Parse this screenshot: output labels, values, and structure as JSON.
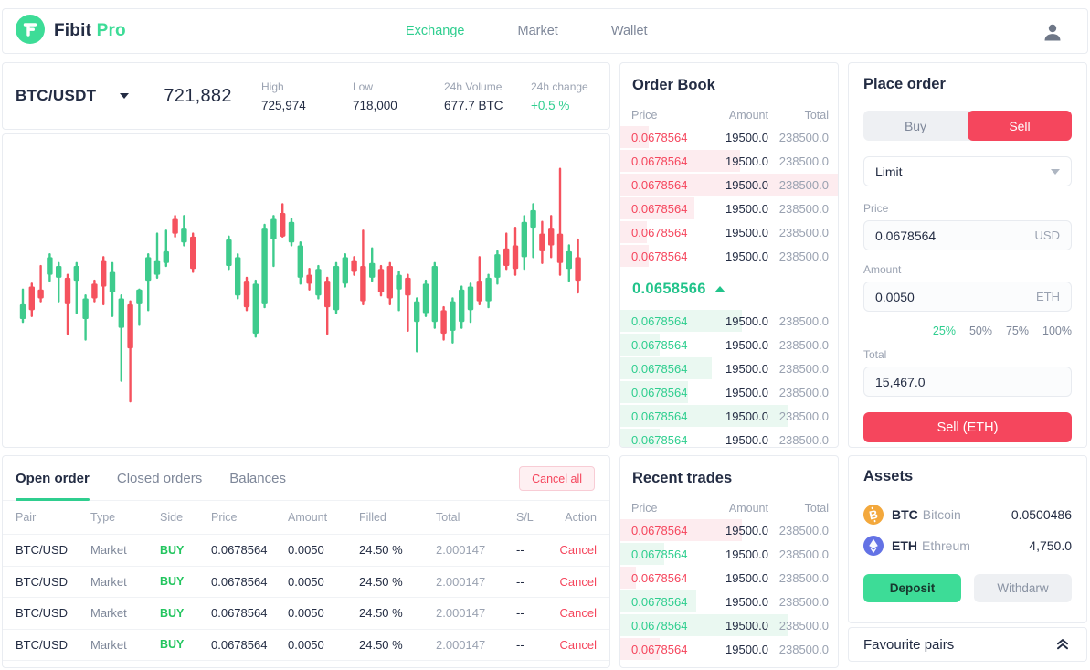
{
  "colors": {
    "accent_green": "#2fce8f",
    "logo_green": "#3ddc97",
    "accent_red": "#f5465d",
    "candle_up": "#3ecb8d",
    "candle_down": "#f5525e",
    "dark_text": "#232c43",
    "muted_text": "#9aa2b1"
  },
  "nav": {
    "brand": "Fibit",
    "brand_suffix": "Pro",
    "items": [
      {
        "label": "Exchange",
        "active": true
      },
      {
        "label": "Market",
        "active": false
      },
      {
        "label": "Wallet",
        "active": false
      }
    ]
  },
  "market_header": {
    "pair": "BTC/USDT",
    "last_price": "721,882",
    "stats": [
      {
        "label": "High",
        "value": "725,974",
        "accent": false
      },
      {
        "label": "Low",
        "value": "718,000",
        "accent": false
      },
      {
        "label": "24h Volume",
        "value": "677.7 BTC",
        "accent": false
      },
      {
        "label": "24h change",
        "value": "+0.5 %",
        "accent": true
      }
    ]
  },
  "chart_data": {
    "type": "candlestick",
    "pair": "BTC/USDT",
    "axes_visible": false,
    "grid": false,
    "up_color": "#3ecb8d",
    "down_color": "#f5525e",
    "note": "values normalized 0-100 of chart height, estimated from pixels; null = gap slot",
    "candles_ohlc": [
      [
        41,
        51,
        40,
        46
      ],
      [
        52,
        53,
        42,
        44
      ],
      [
        51,
        59,
        47,
        48
      ],
      [
        56,
        63,
        54,
        62
      ],
      [
        55,
        60,
        47,
        59
      ],
      [
        55,
        56,
        36,
        46
      ],
      [
        54,
        60,
        43,
        59
      ],
      [
        41,
        49,
        34,
        48
      ],
      [
        53,
        54,
        47,
        48
      ],
      [
        61,
        62,
        46,
        52
      ],
      [
        50,
        60,
        42,
        57
      ],
      [
        38,
        49,
        20,
        48
      ],
      [
        46,
        47,
        13,
        31
      ],
      [
        46,
        51,
        39,
        51
      ],
      [
        54,
        63,
        44,
        62
      ],
      [
        56,
        70,
        55,
        61
      ],
      [
        60,
        71,
        59,
        64
      ],
      [
        75,
        76,
        69,
        70
      ],
      [
        67,
        76,
        66,
        72
      ],
      [
        69,
        70,
        57,
        58
      ],
      null,
      null,
      null,
      [
        59,
        69,
        58,
        68
      ],
      [
        49,
        63,
        48,
        62
      ],
      [
        54,
        55,
        44,
        45
      ],
      [
        36,
        54,
        35,
        53
      ],
      [
        46,
        73,
        45,
        72
      ],
      [
        68,
        76,
        59,
        75
      ],
      [
        77,
        80,
        69,
        69
      ],
      [
        67,
        75,
        66,
        74
      ],
      [
        55,
        67,
        53,
        66
      ],
      [
        56,
        58,
        51,
        53
      ],
      [
        49,
        59,
        48,
        58
      ],
      [
        54,
        55,
        36,
        45
      ],
      [
        44,
        60,
        43,
        59
      ],
      [
        53,
        63,
        52,
        62
      ],
      [
        61,
        62,
        56,
        57
      ],
      [
        59,
        71,
        46,
        47
      ],
      [
        55,
        65,
        54,
        60
      ],
      [
        58,
        59,
        49,
        50
      ],
      [
        59,
        60,
        46,
        48
      ],
      [
        51,
        57,
        44,
        56
      ],
      [
        55,
        56,
        37,
        49
      ],
      [
        40,
        48,
        30,
        47
      ],
      [
        43,
        54,
        42,
        53
      ],
      [
        40,
        60,
        38,
        59
      ],
      [
        44,
        45,
        34,
        36
      ],
      [
        37,
        48,
        33,
        47
      ],
      [
        40,
        52,
        38,
        51
      ],
      [
        44,
        53,
        40,
        52
      ],
      [
        54,
        62,
        46,
        47
      ],
      [
        47,
        56,
        45,
        55
      ],
      [
        55,
        64,
        53,
        63
      ],
      [
        65,
        70,
        58,
        59
      ],
      [
        66,
        72,
        56,
        58
      ],
      [
        62,
        76,
        58,
        74
      ],
      [
        72,
        80,
        62,
        78
      ],
      [
        70,
        74,
        60,
        64
      ],
      [
        72,
        76,
        62,
        66
      ],
      [
        70,
        92,
        56,
        60
      ],
      [
        58,
        66,
        54,
        64
      ],
      [
        62,
        68,
        50,
        54
      ]
    ]
  },
  "order_book": {
    "title": "Order Book",
    "columns": [
      "Price",
      "Amount",
      "Total"
    ],
    "asks": [
      {
        "price": "0.0678564",
        "amount": "19500.0",
        "total": "238500.0",
        "depth": 0.13
      },
      {
        "price": "0.0678564",
        "amount": "19500.0",
        "total": "238500.0",
        "depth": 0.55
      },
      {
        "price": "0.0678564",
        "amount": "19500.0",
        "total": "238500.0",
        "depth": 1.0
      },
      {
        "price": "0.0678564",
        "amount": "19500.0",
        "total": "238500.0",
        "depth": 0.34
      },
      {
        "price": "0.0678564",
        "amount": "19500.0",
        "total": "238500.0",
        "depth": 0.12
      },
      {
        "price": "0.0678564",
        "amount": "19500.0",
        "total": "238500.0",
        "depth": 0.13
      }
    ],
    "mid_price": "0.0658566",
    "mid_direction": "up",
    "bids": [
      {
        "price": "0.0678564",
        "amount": "19500.0",
        "total": "238500.0",
        "depth": 0.56
      },
      {
        "price": "0.0678564",
        "amount": "19500.0",
        "total": "238500.0",
        "depth": 0.18
      },
      {
        "price": "0.0678564",
        "amount": "19500.0",
        "total": "238500.0",
        "depth": 0.42
      },
      {
        "price": "0.0678564",
        "amount": "19500.0",
        "total": "238500.0",
        "depth": 0.31
      },
      {
        "price": "0.0678564",
        "amount": "19500.0",
        "total": "238500.0",
        "depth": 0.77
      },
      {
        "price": "0.0678564",
        "amount": "19500.0",
        "total": "238500.0",
        "depth": 0.18
      }
    ]
  },
  "place_order": {
    "title": "Place order",
    "side_tabs": [
      {
        "label": "Buy",
        "active": false
      },
      {
        "label": "Sell",
        "active": true
      }
    ],
    "order_type": "Limit",
    "price_label": "Price",
    "price_value": "0.0678564",
    "price_unit": "USD",
    "amount_label": "Amount",
    "amount_value": "0.0050",
    "amount_unit": "ETH",
    "percent_options": [
      {
        "label": "25%",
        "active": true
      },
      {
        "label": "50%",
        "active": false
      },
      {
        "label": "75%",
        "active": false
      },
      {
        "label": "100%",
        "active": false
      }
    ],
    "total_label": "Total",
    "total_value": "15,467.0",
    "submit_label": "Sell (ETH)"
  },
  "orders_panel": {
    "tabs": [
      {
        "label": "Open order",
        "active": true
      },
      {
        "label": "Closed orders",
        "active": false
      },
      {
        "label": "Balances",
        "active": false
      }
    ],
    "cancel_all_label": "Cancel all",
    "columns": [
      "Pair",
      "Type",
      "Side",
      "Price",
      "Amount",
      "Filled",
      "Total",
      "S/L",
      "Action"
    ],
    "rows": [
      {
        "pair": "BTC/USD",
        "type": "Market",
        "side": "BUY",
        "price": "0.0678564",
        "amount": "0.0050",
        "filled": "24.50 %",
        "total": "2.000147",
        "sl": "--",
        "action": "Cancel"
      },
      {
        "pair": "BTC/USD",
        "type": "Market",
        "side": "BUY",
        "price": "0.0678564",
        "amount": "0.0050",
        "filled": "24.50 %",
        "total": "2.000147",
        "sl": "--",
        "action": "Cancel"
      },
      {
        "pair": "BTC/USD",
        "type": "Market",
        "side": "BUY",
        "price": "0.0678564",
        "amount": "0.0050",
        "filled": "24.50 %",
        "total": "2.000147",
        "sl": "--",
        "action": "Cancel"
      },
      {
        "pair": "BTC/USD",
        "type": "Market",
        "side": "BUY",
        "price": "0.0678564",
        "amount": "0.0050",
        "filled": "24.50 %",
        "total": "2.000147",
        "sl": "--",
        "action": "Cancel"
      }
    ]
  },
  "recent_trades": {
    "title": "Recent trades",
    "columns": [
      "Price",
      "Amount",
      "Total"
    ],
    "rows": [
      {
        "side": "sell",
        "price": "0.0678564",
        "amount": "19500.0",
        "total": "238500.0",
        "depth": 0.56
      },
      {
        "side": "buy",
        "price": "0.0678564",
        "amount": "19500.0",
        "total": "238500.0",
        "depth": 0.2
      },
      {
        "side": "sell",
        "price": "0.0678564",
        "amount": "19500.0",
        "total": "238500.0",
        "depth": 0.07
      },
      {
        "side": "buy",
        "price": "0.0678564",
        "amount": "19500.0",
        "total": "238500.0",
        "depth": 0.35
      },
      {
        "side": "buy",
        "price": "0.0678564",
        "amount": "19500.0",
        "total": "238500.0",
        "depth": 0.77
      },
      {
        "side": "sell",
        "price": "0.0678564",
        "amount": "19500.0",
        "total": "238500.0",
        "depth": 0.18
      }
    ]
  },
  "assets": {
    "title": "Assets",
    "rows": [
      {
        "icon": "btc-coin-icon",
        "symbol": "BTC",
        "name": "Bitcoin",
        "balance": "0.0500486"
      },
      {
        "icon": "eth-coin-icon",
        "symbol": "ETH",
        "name": "Ethreum",
        "balance": "4,750.0"
      }
    ],
    "deposit_label": "Deposit",
    "withdraw_label": "Withdarw"
  },
  "favourite_pairs": {
    "label": "Favourite pairs"
  }
}
